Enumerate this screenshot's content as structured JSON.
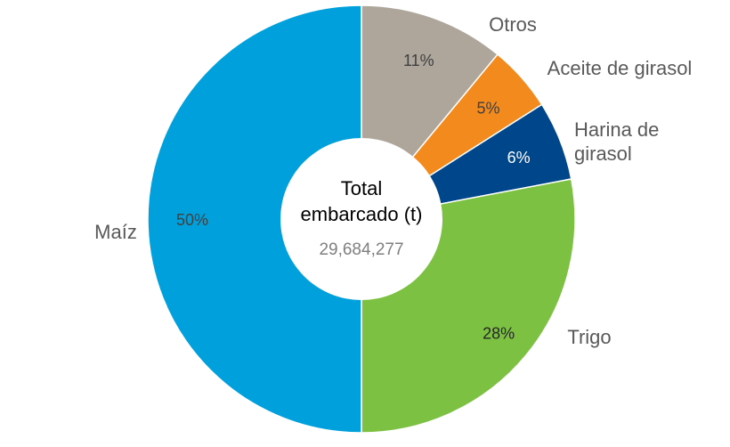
{
  "chart_data": {
    "type": "pie",
    "donut": true,
    "center": {
      "title_lines": [
        "Total",
        "embarcado (t)"
      ],
      "value": "29,684,277"
    },
    "slices": [
      {
        "label": [
          "Otros"
        ],
        "value": 11,
        "pct_label": "11%",
        "color": "#aea59b",
        "pct_color": "#404040"
      },
      {
        "label": [
          "Aceite de girasol"
        ],
        "value": 5,
        "pct_label": "5%",
        "color": "#f28a1e",
        "pct_color": "#404040"
      },
      {
        "label": [
          "Harina de",
          "girasol"
        ],
        "value": 6,
        "pct_label": "6%",
        "color": "#00468b",
        "pct_color": "#ffffff"
      },
      {
        "label": [
          "Trigo"
        ],
        "value": 28,
        "pct_label": "28%",
        "color": "#7dc142",
        "pct_color": "#262626"
      },
      {
        "label": [
          "Maíz"
        ],
        "value": 50,
        "pct_label": "50%",
        "color": "#00a0dc",
        "pct_color": "#404040"
      }
    ]
  }
}
